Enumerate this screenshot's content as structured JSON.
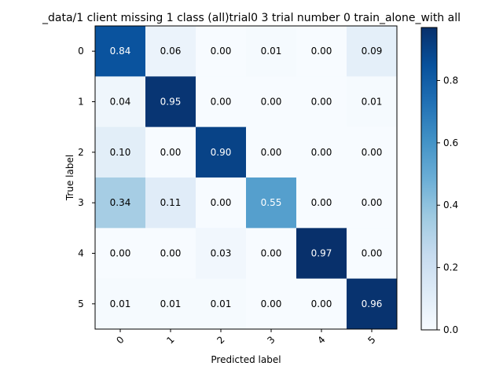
{
  "chart_data": {
    "type": "heatmap",
    "title": "_data/1 client missing 1 class (all)trial0 3 trial number 0  train_alone_with all",
    "xlabel": "Predicted label",
    "ylabel": "True label",
    "x_categories": [
      "0",
      "1",
      "2",
      "3",
      "4",
      "5"
    ],
    "y_categories": [
      "0",
      "1",
      "2",
      "3",
      "4",
      "5"
    ],
    "values": [
      [
        0.84,
        0.06,
        0.0,
        0.01,
        0.0,
        0.09
      ],
      [
        0.04,
        0.95,
        0.0,
        0.0,
        0.0,
        0.01
      ],
      [
        0.1,
        0.0,
        0.9,
        0.0,
        0.0,
        0.0
      ],
      [
        0.34,
        0.11,
        0.0,
        0.55,
        0.0,
        0.0
      ],
      [
        0.0,
        0.0,
        0.03,
        0.0,
        0.97,
        0.0
      ],
      [
        0.01,
        0.01,
        0.01,
        0.0,
        0.0,
        0.96
      ]
    ],
    "colormap": "Blues",
    "vmin": 0.0,
    "vmax": 0.97,
    "colorbar_ticks": [
      "0.0",
      "0.2",
      "0.4",
      "0.6",
      "0.8"
    ],
    "colorbar_tick_values": [
      0.0,
      0.2,
      0.4,
      0.6,
      0.8
    ]
  }
}
